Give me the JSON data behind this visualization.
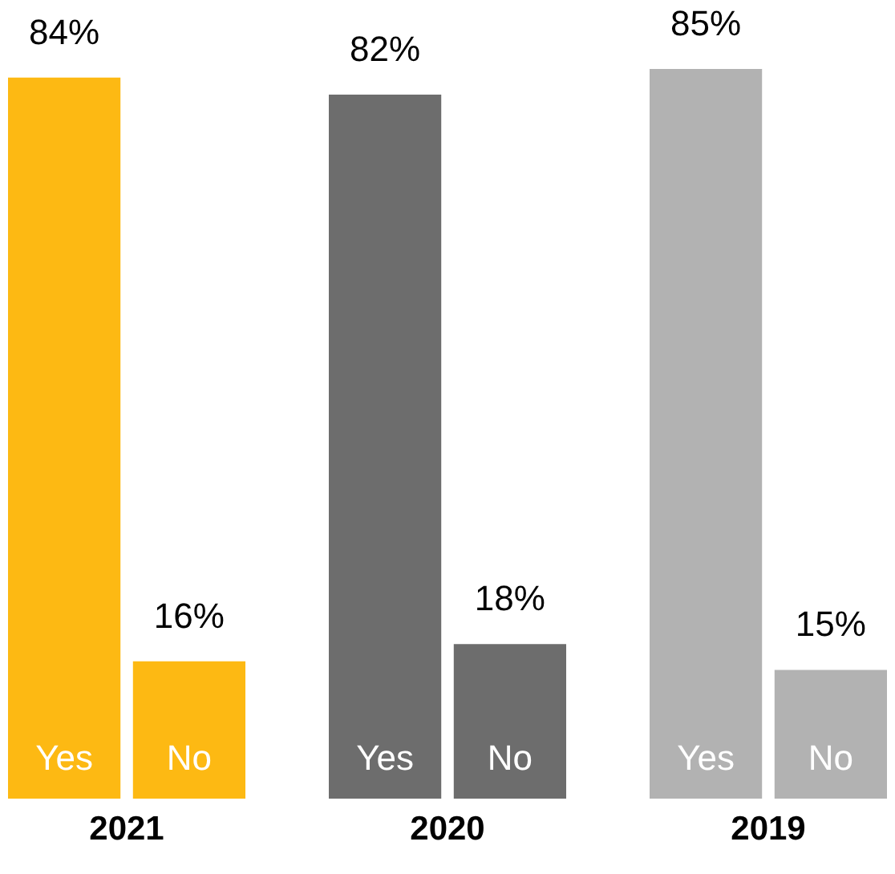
{
  "chart_data": {
    "type": "bar",
    "categories": [
      "2021",
      "2020",
      "2019"
    ],
    "series": [
      {
        "name": "Yes",
        "values": [
          84,
          82,
          85
        ],
        "colors": [
          "#fdb913",
          "#6d6d6d",
          "#b2b2b2"
        ],
        "value_labels": [
          "84%",
          "82%",
          "85%"
        ]
      },
      {
        "name": "No",
        "values": [
          16,
          18,
          15
        ],
        "colors": [
          "#fdb913",
          "#6d6d6d",
          "#b2b2b2"
        ],
        "value_labels": [
          "16%",
          "18%",
          "15%"
        ]
      }
    ],
    "grid": false
  }
}
